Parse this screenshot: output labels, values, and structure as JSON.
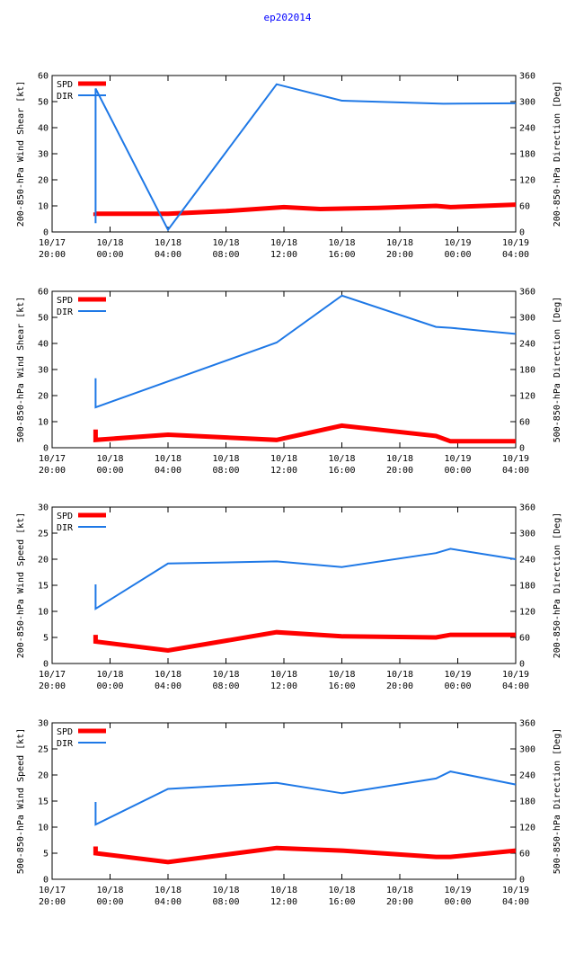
{
  "title": "ep202014",
  "colors": {
    "spd": "#ff0000",
    "dir": "#1e78e6",
    "axis": "#000000",
    "title": "#0000ff"
  },
  "time_ticks": [
    [
      "10/17",
      "20:00"
    ],
    [
      "10/18",
      "00:00"
    ],
    [
      "10/18",
      "04:00"
    ],
    [
      "10/18",
      "08:00"
    ],
    [
      "10/18",
      "12:00"
    ],
    [
      "10/18",
      "16:00"
    ],
    [
      "10/18",
      "20:00"
    ],
    [
      "10/19",
      "00:00"
    ],
    [
      "10/19",
      "04:00"
    ]
  ],
  "chart_data": [
    {
      "type": "line",
      "ylabel": "200-850-hPa Wind Shear [kt]",
      "y2label": "200-850-hPa Direction [Deg]",
      "ylim": [
        0,
        60
      ],
      "yticks": [
        0,
        10,
        20,
        30,
        40,
        50,
        60
      ],
      "y2lim": [
        0,
        360
      ],
      "y2ticks": [
        0,
        60,
        120,
        180,
        240,
        300,
        360
      ],
      "xlim_hours": [
        0,
        32
      ],
      "legend": [
        "SPD",
        "DIR"
      ],
      "series": [
        {
          "name": "SPD",
          "axis": "left",
          "x": [
            3.0,
            3.0,
            8.0,
            12.0,
            16.0,
            18.5,
            22.5,
            26.5,
            27.5,
            32.0
          ],
          "y": [
            7.5,
            7.0,
            7.0,
            8.0,
            9.5,
            8.8,
            9.2,
            10.0,
            9.5,
            10.5
          ]
        },
        {
          "name": "DIR",
          "axis": "right",
          "x": [
            3.0,
            3.0,
            3.0,
            8.0,
            15.5,
            20.0,
            27.0,
            32.0
          ],
          "y": [
            330,
            20,
            330,
            5,
            340,
            302,
            295,
            296
          ]
        }
      ]
    },
    {
      "type": "line",
      "ylabel": "500-850-hPa Wind Shear [kt]",
      "y2label": "500-850-hPa Direction [Deg]",
      "ylim": [
        0,
        60
      ],
      "yticks": [
        0,
        10,
        20,
        30,
        40,
        50,
        60
      ],
      "y2lim": [
        0,
        360
      ],
      "y2ticks": [
        0,
        60,
        120,
        180,
        240,
        300,
        360
      ],
      "xlim_hours": [
        0,
        32
      ],
      "legend": [
        "SPD",
        "DIR"
      ],
      "series": [
        {
          "name": "SPD",
          "axis": "left",
          "x": [
            3.0,
            3.0,
            8.0,
            15.5,
            20.0,
            26.5,
            27.5,
            32.0
          ],
          "y": [
            7.0,
            3.0,
            5.0,
            3.0,
            8.5,
            4.5,
            2.5,
            2.5
          ]
        },
        {
          "name": "DIR",
          "axis": "right",
          "x": [
            3.0,
            3.0,
            15.5,
            20.0,
            26.5,
            27.5,
            32.0
          ],
          "y": [
            160,
            93,
            242,
            350,
            278,
            276,
            262
          ]
        }
      ]
    },
    {
      "type": "line",
      "ylabel": "200-850-hPa Wind Speed [kt]",
      "y2label": "200-850-hPa Direction [Deg]",
      "ylim": [
        0,
        30
      ],
      "yticks": [
        0,
        5,
        10,
        15,
        20,
        25,
        30
      ],
      "y2lim": [
        0,
        360
      ],
      "y2ticks": [
        0,
        60,
        120,
        180,
        240,
        300,
        360
      ],
      "xlim_hours": [
        0,
        32
      ],
      "legend": [
        "SPD",
        "DIR"
      ],
      "series": [
        {
          "name": "SPD",
          "axis": "left",
          "x": [
            3.0,
            3.0,
            8.0,
            15.5,
            20.0,
            26.5,
            27.5,
            32.0
          ],
          "y": [
            5.5,
            4.2,
            2.5,
            6.0,
            5.2,
            5.0,
            5.5,
            5.5
          ]
        },
        {
          "name": "DIR",
          "axis": "right",
          "x": [
            3.0,
            3.0,
            8.0,
            15.5,
            20.0,
            26.5,
            27.5,
            32.0
          ],
          "y": [
            182,
            126,
            230,
            235,
            222,
            254,
            264,
            240
          ]
        }
      ]
    },
    {
      "type": "line",
      "ylabel": "500-850-hPa Wind Speed [kt]",
      "y2label": "500-850-hPa Direction [Deg]",
      "ylim": [
        0,
        30
      ],
      "yticks": [
        0,
        5,
        10,
        15,
        20,
        25,
        30
      ],
      "y2lim": [
        0,
        360
      ],
      "y2ticks": [
        0,
        60,
        120,
        180,
        240,
        300,
        360
      ],
      "xlim_hours": [
        0,
        32
      ],
      "legend": [
        "SPD",
        "DIR"
      ],
      "series": [
        {
          "name": "SPD",
          "axis": "left",
          "x": [
            3.0,
            3.0,
            8.0,
            15.5,
            20.0,
            26.5,
            27.5,
            32.0
          ],
          "y": [
            6.3,
            5.0,
            3.3,
            6.0,
            5.5,
            4.3,
            4.3,
            5.5
          ]
        },
        {
          "name": "DIR",
          "axis": "right",
          "x": [
            3.0,
            3.0,
            8.0,
            15.5,
            20.0,
            26.5,
            27.5,
            32.0
          ],
          "y": [
            178,
            126,
            208,
            222,
            198,
            232,
            248,
            218
          ]
        }
      ]
    }
  ]
}
